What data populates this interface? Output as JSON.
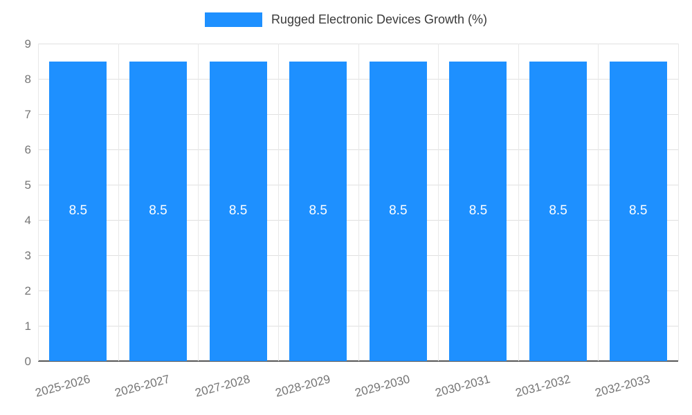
{
  "chart_data": {
    "type": "bar",
    "title": "Rugged Electronic Devices Growth (%)",
    "categories": [
      "2025-2026",
      "2026-2027",
      "2027-2028",
      "2028-2029",
      "2029-2030",
      "2030-2031",
      "2031-2032",
      "2032-2033"
    ],
    "values": [
      8.5,
      8.5,
      8.5,
      8.5,
      8.5,
      8.5,
      8.5,
      8.5
    ],
    "value_labels": [
      "8.5",
      "8.5",
      "8.5",
      "8.5",
      "8.5",
      "8.5",
      "8.5",
      "8.5"
    ],
    "xlabel": "",
    "ylabel": "",
    "ylim": [
      0,
      9
    ],
    "ytick_step": 1,
    "ytick_labels": [
      "0",
      "1",
      "2",
      "3",
      "4",
      "5",
      "6",
      "7",
      "8",
      "9"
    ],
    "grid": "on",
    "legend_position": "top-center",
    "colors": {
      "bar": "#1e90ff",
      "value_label": "#ffffff",
      "grid": "#e0e0e0",
      "axis": "#555555",
      "tick_text": "#757575",
      "legend_text": "#3a3a3a"
    }
  }
}
